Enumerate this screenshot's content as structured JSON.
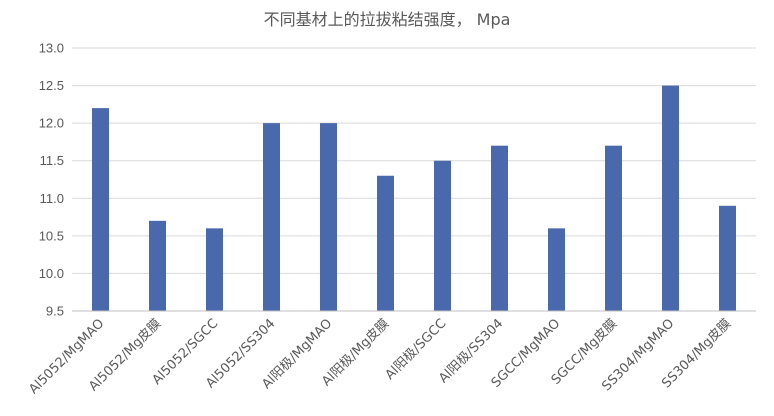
{
  "chart_data": {
    "type": "bar",
    "title": "不同基材上的拉拔粘结强度， Mpa",
    "xlabel": "",
    "ylabel": "",
    "categories": [
      "Al5052/MgMAO",
      "Al5052/Mg皮膜",
      "Al5052/SGCC",
      "Al5052/SS304",
      "Al阳极/MgMAO",
      "Al阳极/Mg皮膜",
      "Al阳极/SGCC",
      "Al阳极/SS304",
      "SGCC/MgMAO",
      "SGCC/Mg皮膜",
      "SS304/MgMAO",
      "SS304/Mg皮膜"
    ],
    "values": [
      12.2,
      10.7,
      10.6,
      12.0,
      12.0,
      11.3,
      11.5,
      11.7,
      10.6,
      11.7,
      12.5,
      10.9
    ],
    "ylim": [
      9.5,
      13.0
    ],
    "yticks": [
      "9.5",
      "10.0",
      "10.5",
      "11.0",
      "11.5",
      "12.0",
      "12.5",
      "13.0"
    ],
    "grid": true,
    "bar_color": "#4a69ad"
  }
}
